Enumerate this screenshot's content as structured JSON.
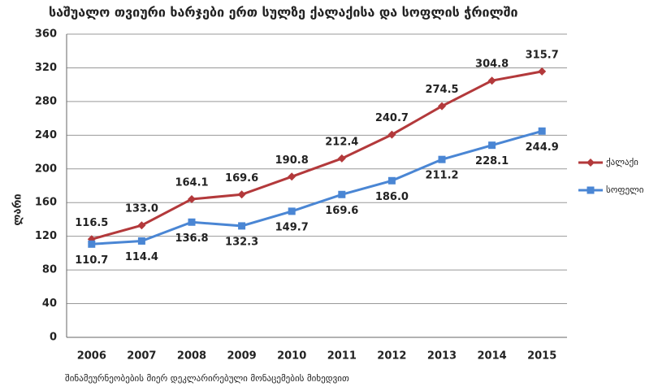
{
  "chart_data": {
    "type": "line",
    "title": "საშუალო თვიური ხარჯები ერთ სულზე ქალაქისა და სოფლის ჭრილში",
    "y_label": "ლარი",
    "note": "შინამეურნეობების მიერ დეკლარირებული მონაცემების მიხედვით",
    "categories": [
      "2006",
      "2007",
      "2008",
      "2009",
      "2010",
      "2011",
      "2012",
      "2013",
      "2014",
      "2015"
    ],
    "series": [
      {
        "name": "ქალაქი",
        "color": "#b3393b",
        "marker": "diamond",
        "values": [
          116.5,
          133.0,
          164.1,
          169.6,
          190.8,
          212.4,
          240.7,
          274.5,
          304.8,
          315.7
        ],
        "value_labels": [
          "116.5",
          "133.0",
          "164.1",
          "169.6",
          "190.8",
          "212.4",
          "240.7",
          "274.5",
          "304.8",
          "315.7"
        ]
      },
      {
        "name": "სოფელი",
        "color": "#4a86d4",
        "marker": "square",
        "values": [
          110.7,
          114.4,
          136.8,
          132.3,
          149.7,
          169.6,
          186.0,
          211.2,
          228.1,
          244.9
        ],
        "value_labels": [
          "110.7",
          "114.4",
          "136.8",
          "132.3",
          "149.7",
          "169.6",
          "186.0",
          "211.2",
          "228.1",
          "244.9"
        ]
      }
    ],
    "ylim": [
      0,
      360
    ],
    "yticks": [
      0,
      40,
      80,
      120,
      160,
      200,
      240,
      280,
      320,
      360
    ],
    "grid": true,
    "legend": "right"
  }
}
